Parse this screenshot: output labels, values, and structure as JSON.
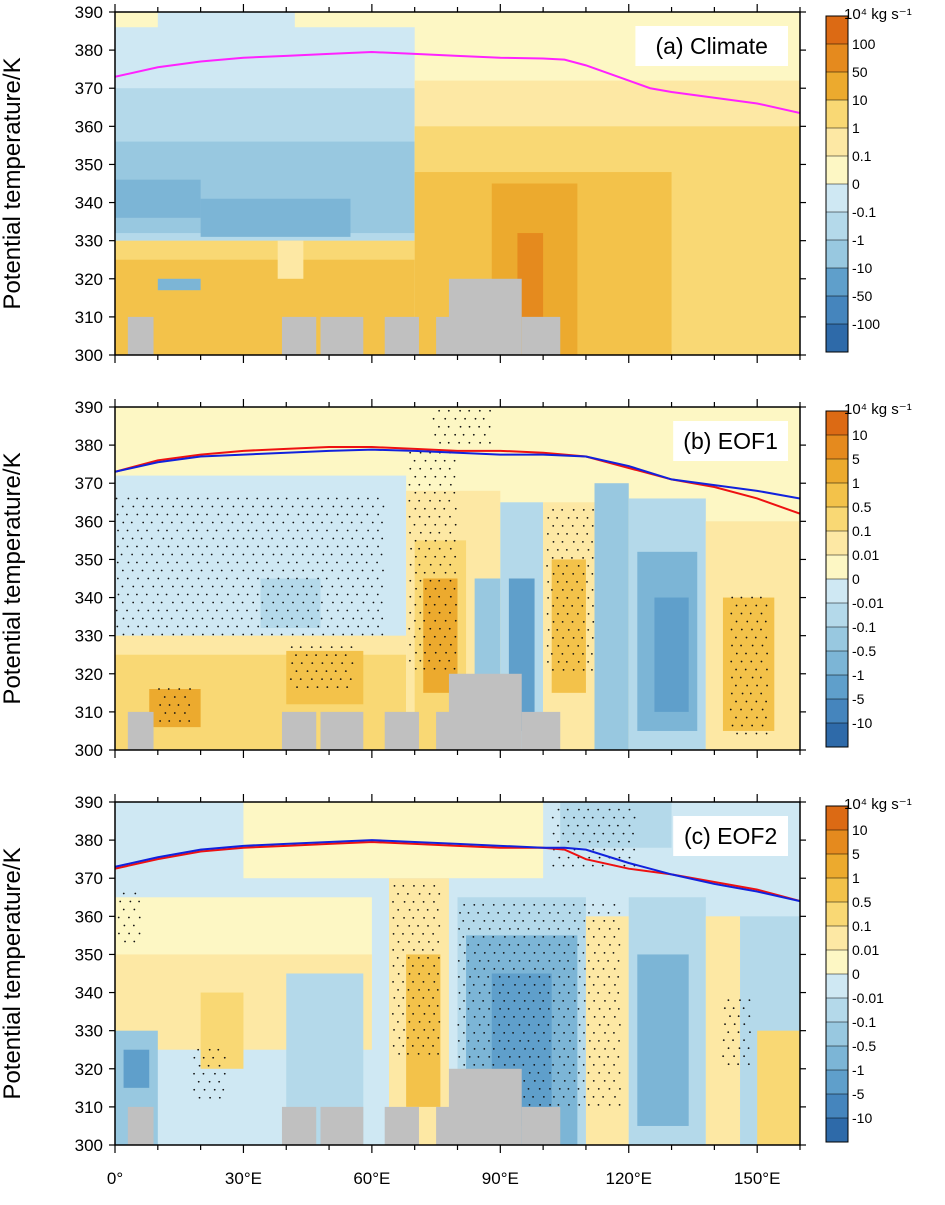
{
  "panels": [
    {
      "label": "(a) Climate",
      "ylabel": "Potential temperature/K",
      "colorbar_unit": "10⁴ kg s⁻¹",
      "colorbar_labels": [
        "100",
        "50",
        "10",
        "1",
        "0.1",
        "0",
        "-0.1",
        "-1",
        "-10",
        "-50",
        "-100"
      ],
      "lines": [
        {
          "color": "#ff22ff",
          "x": [
            0,
            10,
            20,
            30,
            40,
            50,
            60,
            70,
            80,
            90,
            100,
            105,
            110,
            115,
            120,
            125,
            130,
            140,
            150,
            160
          ],
          "y": [
            373,
            375.5,
            377,
            378,
            378.5,
            379,
            379.5,
            379,
            378.5,
            378,
            377.8,
            377.5,
            376,
            374,
            372,
            370,
            369,
            367.5,
            366,
            363.5
          ]
        }
      ],
      "stipple": []
    },
    {
      "label": "(b) EOF1",
      "ylabel": "Potential temperature/K",
      "colorbar_unit": "10⁴ kg s⁻¹",
      "colorbar_labels": [
        "10",
        "5",
        "1",
        "0.5",
        "0.1",
        "0.01",
        "0",
        "-0.01",
        "-0.1",
        "-0.5",
        "-1",
        "-5",
        "-10"
      ],
      "lines": [
        {
          "color": "#ee1111",
          "x": [
            0,
            10,
            20,
            30,
            40,
            50,
            60,
            70,
            80,
            90,
            100,
            110,
            120,
            130,
            140,
            150,
            160
          ],
          "y": [
            373,
            376,
            377.5,
            378.5,
            379,
            379.5,
            379.5,
            379,
            378.5,
            378.5,
            378,
            377,
            374,
            371,
            369,
            366,
            362
          ]
        },
        {
          "color": "#1122dd",
          "x": [
            0,
            10,
            20,
            30,
            40,
            50,
            60,
            70,
            80,
            90,
            100,
            110,
            120,
            130,
            140,
            150,
            160
          ],
          "y": [
            373,
            375.5,
            377,
            377.5,
            378,
            378.5,
            378.8,
            378.5,
            378,
            377.5,
            377.5,
            377,
            374.5,
            371,
            369.5,
            368,
            366
          ]
        }
      ],
      "stipple": [
        {
          "x": [
            0,
            63
          ],
          "y": [
            330,
            366
          ]
        },
        {
          "x": [
            68,
            80
          ],
          "y": [
            320,
            378
          ]
        },
        {
          "x": [
            74,
            88
          ],
          "y": [
            379,
            389
          ]
        },
        {
          "x": [
            100,
            112
          ],
          "y": [
            320,
            363
          ]
        },
        {
          "x": [
            143,
            152
          ],
          "y": [
            303,
            340
          ]
        },
        {
          "x": [
            10,
            18
          ],
          "y": [
            306,
            316
          ]
        },
        {
          "x": [
            40,
            56
          ],
          "y": [
            315,
            327
          ]
        }
      ]
    },
    {
      "label": "(c) EOF2",
      "ylabel": "Potential temperature/K",
      "colorbar_unit": "10⁴ kg s⁻¹",
      "colorbar_labels": [
        "10",
        "5",
        "1",
        "0.5",
        "0.1",
        "0.01",
        "0",
        "-0.01",
        "-0.1",
        "-0.5",
        "-1",
        "-5",
        "-10"
      ],
      "lines": [
        {
          "color": "#ee1111",
          "x": [
            0,
            10,
            20,
            30,
            40,
            50,
            60,
            70,
            80,
            90,
            100,
            105,
            110,
            120,
            130,
            140,
            150,
            160
          ],
          "y": [
            372.5,
            375,
            377,
            378,
            378.5,
            379,
            379.5,
            379,
            378.5,
            378,
            378,
            377.5,
            375,
            372.5,
            371,
            369,
            367,
            364
          ]
        },
        {
          "color": "#1122dd",
          "x": [
            0,
            10,
            20,
            30,
            40,
            50,
            60,
            70,
            80,
            90,
            100,
            105,
            110,
            120,
            130,
            140,
            150,
            160
          ],
          "y": [
            373,
            375.5,
            377.5,
            378.5,
            379,
            379.5,
            380,
            379.5,
            379,
            378.5,
            378,
            378,
            377.5,
            374,
            371,
            368.5,
            366.5,
            364
          ]
        }
      ],
      "stipple": [
        {
          "x": [
            80,
            118
          ],
          "y": [
            310,
            363
          ]
        },
        {
          "x": [
            102,
            122
          ],
          "y": [
            372,
            388
          ]
        },
        {
          "x": [
            64,
            76
          ],
          "y": [
            322,
            368
          ]
        },
        {
          "x": [
            0,
            6
          ],
          "y": [
            352,
            366
          ]
        },
        {
          "x": [
            18,
            26
          ],
          "y": [
            312,
            325
          ]
        },
        {
          "x": [
            142,
            148
          ],
          "y": [
            320,
            338
          ]
        }
      ]
    }
  ],
  "chart_data": [
    {
      "type": "heatmap",
      "title": "(a) Climate",
      "xlabel": "",
      "ylabel": "Potential temperature/K",
      "xlim": [
        0,
        160
      ],
      "ylim": [
        300,
        390
      ],
      "x_ticks": [
        "0°",
        "30°E",
        "60°E",
        "90°E",
        "120°E",
        "150°E"
      ],
      "y_ticks": [
        300,
        310,
        320,
        330,
        340,
        350,
        360,
        370,
        380,
        390
      ],
      "colorbar": {
        "unit": "10⁴ kg s⁻¹",
        "levels": [
          100,
          50,
          10,
          1,
          0.1,
          0,
          -0.1,
          -1,
          -10,
          -50,
          -100
        ]
      },
      "series": [
        {
          "values": "contour line (magenta)",
          "x": [
            0,
            30,
            60,
            90,
            105,
            120,
            140,
            160
          ],
          "y": [
            373,
            378,
            379.5,
            378,
            377.5,
            372,
            367.5,
            363.5
          ]
        }
      ]
    },
    {
      "type": "heatmap",
      "title": "(b) EOF1",
      "ylabel": "Potential temperature/K",
      "xlim": [
        0,
        160
      ],
      "ylim": [
        300,
        390
      ],
      "colorbar": {
        "unit": "10⁴ kg s⁻¹",
        "levels": [
          10,
          5,
          1,
          0.5,
          0.1,
          0.01,
          0,
          -0.01,
          -0.1,
          -0.5,
          -1,
          -5,
          -10
        ]
      }
    },
    {
      "type": "heatmap",
      "title": "(c) EOF2",
      "ylabel": "Potential temperature/K",
      "xlim": [
        0,
        160
      ],
      "ylim": [
        300,
        390
      ],
      "colorbar": {
        "unit": "10⁴ kg s⁻¹",
        "levels": [
          10,
          5,
          1,
          0.5,
          0.1,
          0.01,
          0,
          -0.01,
          -0.1,
          -0.5,
          -1,
          -5,
          -10
        ]
      }
    }
  ],
  "x_axis": {
    "ticks": [
      "0°",
      "30°E",
      "60°E",
      "90°E",
      "120°E",
      "150°E"
    ],
    "values": [
      0,
      30,
      60,
      90,
      120,
      150
    ]
  },
  "y_axis": {
    "ticks": [
      "300",
      "310",
      "320",
      "330",
      "340",
      "350",
      "360",
      "370",
      "380",
      "390"
    ]
  },
  "palette": {
    "warm": [
      "#fdf7c4",
      "#fde8a4",
      "#f9d874",
      "#f3c24a",
      "#ecaa2e",
      "#e58a1e",
      "#dc6a14"
    ],
    "cool": [
      "#cfe8f3",
      "#b4d9ea",
      "#98c8e0",
      "#7cb5d6",
      "#5f9fcb",
      "#4585bd",
      "#2e6aa9"
    ],
    "terrain": "#c0c0c0"
  }
}
